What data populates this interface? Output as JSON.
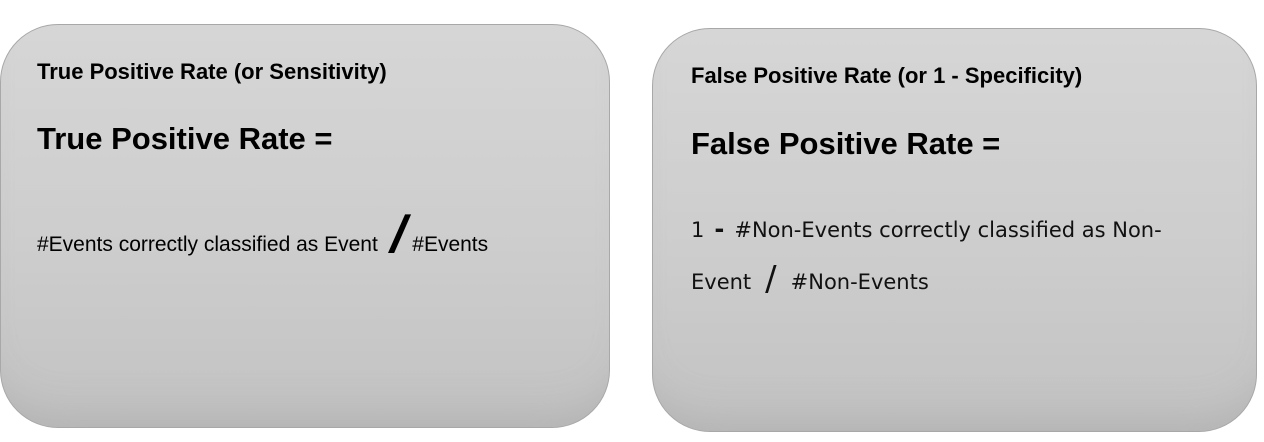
{
  "left_card": {
    "heading": "True Positive Rate (or Sensitivity)",
    "equation": "True Positive Rate =",
    "numerator": "#Events correctly classified as Event",
    "divider": "/",
    "denominator": "#Events"
  },
  "right_card": {
    "heading": "False Positive Rate (or 1 - Specificity)",
    "equation": "False Positive Rate =",
    "prefix": "1",
    "minus": "-",
    "numerator_line1": "#Non-Events correctly classified as Non-",
    "numerator_line2": "Event",
    "divider": "/",
    "denominator": "#Non-Events"
  },
  "colors": {
    "card_fill": "#d0d0d0",
    "card_border": "#a8a8a8",
    "text": "#000000"
  }
}
